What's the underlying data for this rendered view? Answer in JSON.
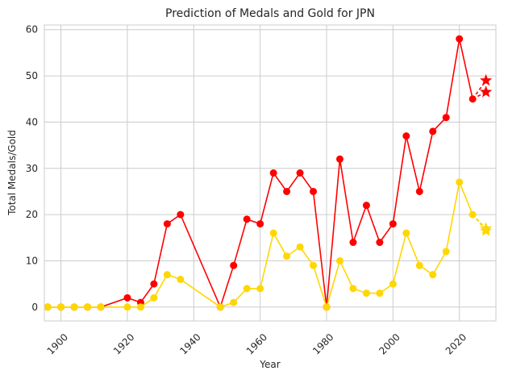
{
  "chart_data": {
    "type": "line",
    "title": "Prediction of Medals and Gold for JPN",
    "xlabel": "Year",
    "ylabel": "Total Medals/Gold",
    "xlim": [
      1895,
      2031
    ],
    "ylim": [
      -3,
      61
    ],
    "x_ticks": [
      1900,
      1920,
      1940,
      1960,
      1980,
      2000,
      2020
    ],
    "y_ticks": [
      0,
      10,
      20,
      30,
      40,
      50,
      60
    ],
    "grid": true,
    "legend": "none",
    "series": [
      {
        "color": "#ff0000",
        "x": [
          1896,
          1900,
          1904,
          1908,
          1912,
          1920,
          1924,
          1928,
          1932,
          1936,
          1948,
          1952,
          1956,
          1960,
          1964,
          1968,
          1972,
          1976,
          1980,
          1984,
          1988,
          1992,
          1996,
          2000,
          2004,
          2008,
          2012,
          2016,
          2020,
          2024
        ],
        "y": [
          0,
          0,
          0,
          0,
          0,
          2,
          1,
          5,
          18,
          20,
          0,
          9,
          19,
          18,
          29,
          25,
          29,
          25,
          0,
          32,
          14,
          22,
          14,
          18,
          37,
          25,
          38,
          41,
          58,
          45
        ],
        "prediction": {
          "x": 2028,
          "y": [
            49,
            46.5
          ]
        }
      },
      {
        "color": "#ffd700",
        "x": [
          1896,
          1900,
          1904,
          1908,
          1912,
          1920,
          1924,
          1928,
          1932,
          1936,
          1948,
          1952,
          1956,
          1960,
          1964,
          1968,
          1972,
          1976,
          1980,
          1984,
          1988,
          1992,
          1996,
          2000,
          2004,
          2008,
          2012,
          2016,
          2020,
          2024
        ],
        "y": [
          0,
          0,
          0,
          0,
          0,
          0,
          0,
          2,
          7,
          6,
          0,
          1,
          4,
          4,
          16,
          11,
          13,
          9,
          0,
          10,
          4,
          3,
          3,
          5,
          16,
          9,
          7,
          12,
          27,
          20
        ],
        "prediction": {
          "x": 2028,
          "y": [
            17,
            16.5
          ]
        }
      }
    ]
  }
}
